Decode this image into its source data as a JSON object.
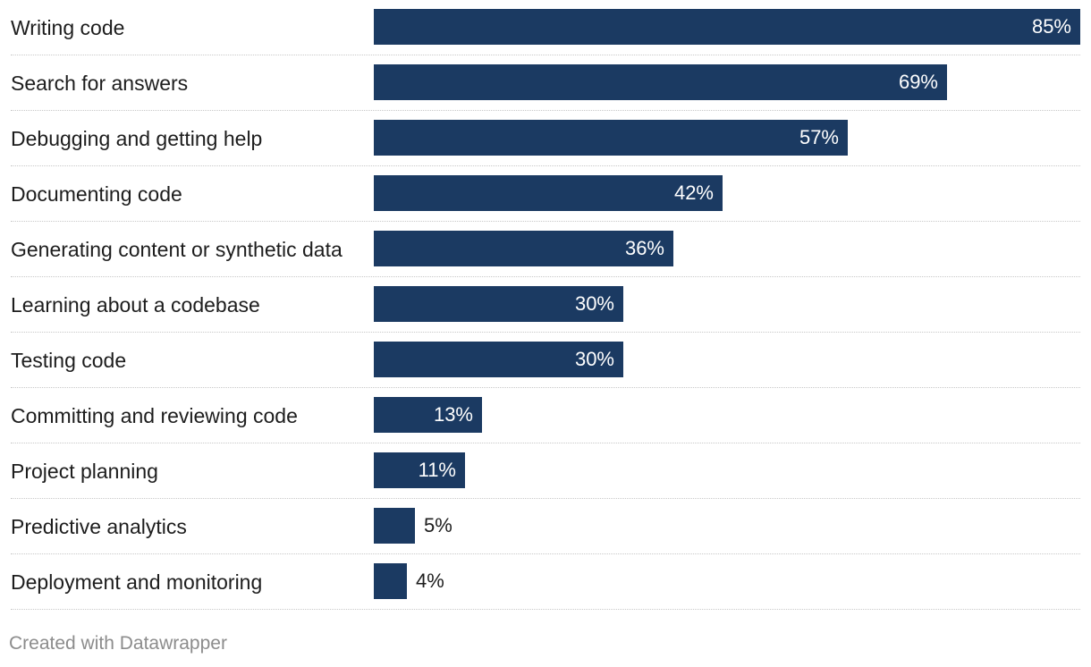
{
  "chart_data": {
    "type": "bar",
    "orientation": "horizontal",
    "categories": [
      "Writing code",
      "Search for answers",
      "Debugging and getting help",
      "Documenting code",
      "Generating content or synthetic data",
      "Learning about a codebase",
      "Testing code",
      "Committing and reviewing code",
      "Project planning",
      "Predictive analytics",
      "Deployment and monitoring"
    ],
    "values": [
      85,
      69,
      57,
      42,
      36,
      30,
      30,
      13,
      11,
      5,
      4
    ],
    "value_suffix": "%",
    "title": "",
    "xlabel": "",
    "ylabel": "",
    "xlim": [
      0,
      100
    ],
    "bar_color": "#1b3a62",
    "grid": false,
    "legend": "none"
  },
  "footer": {
    "credit": "Created with Datawrapper"
  }
}
